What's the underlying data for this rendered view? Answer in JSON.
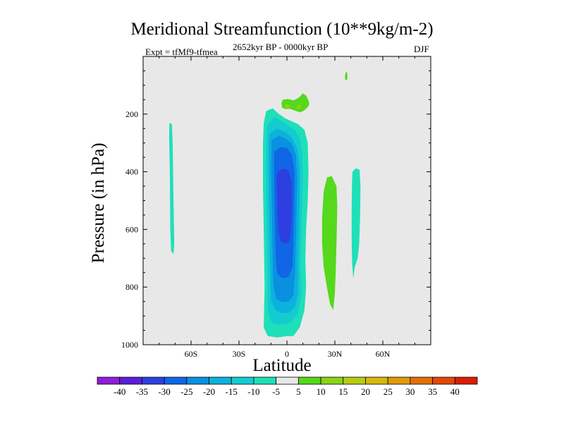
{
  "chart_data": {
    "type": "heatmap",
    "title": "Meridional Streamfunction (10**9kg/m-2)",
    "left_note": "Expt = tfMf9-tfmea",
    "center_note": "2652kyr BP - 0000kyr BP",
    "right_note": "DJF",
    "xlabel": "Latitude",
    "ylabel": "Pressure (in hPa)",
    "xlim": [
      -90,
      90
    ],
    "ylim": [
      1000,
      0
    ],
    "xticks": [
      {
        "value": -60,
        "label": "60S"
      },
      {
        "value": -30,
        "label": "30S"
      },
      {
        "value": 0,
        "label": "0"
      },
      {
        "value": 30,
        "label": "30N"
      },
      {
        "value": 60,
        "label": "60N"
      }
    ],
    "yticks": [
      {
        "value": 200,
        "label": "200"
      },
      {
        "value": 400,
        "label": "400"
      },
      {
        "value": 600,
        "label": "600"
      },
      {
        "value": 800,
        "label": "800"
      },
      {
        "value": 1000,
        "label": "1000"
      }
    ],
    "colorbar": {
      "levels": [
        -40,
        -35,
        -30,
        -25,
        -20,
        -15,
        -10,
        -5,
        5,
        10,
        15,
        20,
        25,
        30,
        35,
        40
      ],
      "labels": [
        "-40",
        "-35",
        "-30",
        "-25",
        "-20",
        "-15",
        "-10",
        "-5",
        "5",
        "10",
        "15",
        "20",
        "25",
        "30",
        "35",
        "40"
      ],
      "colors": [
        "#8f1ed8",
        "#5b1ed9",
        "#2d3fe0",
        "#1066e6",
        "#0a90e0",
        "#0cb2dc",
        "#14ccd0",
        "#1ee0b8",
        "#e8e8e8",
        "#56d81c",
        "#8ad418",
        "#b8cc12",
        "#d6b80e",
        "#e09a0c",
        "#e2700a",
        "#e04808",
        "#d81e06"
      ]
    },
    "background_color": "#e8e8e8",
    "regions": [
      {
        "name": "cell-45S-outer",
        "level": -5,
        "points": [
          [
            -73.5,
            230
          ],
          [
            -72,
            235
          ],
          [
            -71.5,
            300
          ],
          [
            -71,
            500
          ],
          [
            -70.5,
            650
          ],
          [
            -71,
            685
          ],
          [
            -72.5,
            675
          ],
          [
            -73,
            600
          ],
          [
            -73.3,
            400
          ],
          [
            -73.7,
            280
          ]
        ]
      },
      {
        "name": "main-cell-outer",
        "level": -5,
        "points": [
          [
            -14.5,
            230
          ],
          [
            -13,
            190
          ],
          [
            -9,
            180
          ],
          [
            -5,
            200
          ],
          [
            -1,
            215
          ],
          [
            3,
            225
          ],
          [
            7,
            235
          ],
          [
            11,
            255
          ],
          [
            13,
            300
          ],
          [
            13.5,
            400
          ],
          [
            13,
            500
          ],
          [
            12,
            600
          ],
          [
            11.5,
            700
          ],
          [
            12,
            800
          ],
          [
            11,
            880
          ],
          [
            8,
            940
          ],
          [
            4,
            970
          ],
          [
            0,
            970
          ],
          [
            -6,
            975
          ],
          [
            -12,
            970
          ],
          [
            -14.5,
            940
          ],
          [
            -14,
            800
          ],
          [
            -14.5,
            600
          ],
          [
            -15,
            450
          ],
          [
            -15,
            300
          ]
        ]
      },
      {
        "name": "main-cell-ring2",
        "level": -10,
        "points": [
          [
            -12.5,
            240
          ],
          [
            -8,
            210
          ],
          [
            -3,
            225
          ],
          [
            1,
            240
          ],
          [
            5,
            255
          ],
          [
            8,
            280
          ],
          [
            9.5,
            330
          ],
          [
            10,
            420
          ],
          [
            9.5,
            520
          ],
          [
            9,
            620
          ],
          [
            8.5,
            720
          ],
          [
            9,
            820
          ],
          [
            7,
            890
          ],
          [
            3,
            920
          ],
          [
            -1,
            930
          ],
          [
            -6,
            930
          ],
          [
            -10,
            920
          ],
          [
            -12,
            880
          ],
          [
            -12,
            780
          ],
          [
            -12.5,
            640
          ],
          [
            -13,
            480
          ],
          [
            -13,
            330
          ]
        ]
      },
      {
        "name": "main-cell-ring3",
        "level": -15,
        "points": [
          [
            -11,
            270
          ],
          [
            -6,
            250
          ],
          [
            -1,
            262
          ],
          [
            3,
            280
          ],
          [
            6.5,
            320
          ],
          [
            8,
            380
          ],
          [
            8,
            480
          ],
          [
            7.5,
            600
          ],
          [
            7,
            720
          ],
          [
            7,
            820
          ],
          [
            5,
            870
          ],
          [
            1,
            890
          ],
          [
            -3,
            890
          ],
          [
            -7,
            880
          ],
          [
            -10,
            850
          ],
          [
            -10.5,
            750
          ],
          [
            -11,
            600
          ],
          [
            -11.5,
            420
          ],
          [
            -11.5,
            320
          ]
        ]
      },
      {
        "name": "main-cell-ring4",
        "level": -20,
        "points": [
          [
            -9.5,
            290
          ],
          [
            -5,
            275
          ],
          [
            -1,
            285
          ],
          [
            3,
            300
          ],
          [
            5.5,
            340
          ],
          [
            6.5,
            420
          ],
          [
            6,
            540
          ],
          [
            5.5,
            660
          ],
          [
            5,
            760
          ],
          [
            4,
            830
          ],
          [
            1,
            850
          ],
          [
            -3,
            852
          ],
          [
            -7,
            840
          ],
          [
            -8.5,
            790
          ],
          [
            -9,
            680
          ],
          [
            -9.5,
            520
          ],
          [
            -10,
            380
          ]
        ]
      },
      {
        "name": "main-cell-ring5",
        "level": -25,
        "points": [
          [
            -8,
            330
          ],
          [
            -4,
            315
          ],
          [
            0,
            318
          ],
          [
            3,
            340
          ],
          [
            4.8,
            400
          ],
          [
            4.5,
            520
          ],
          [
            4,
            640
          ],
          [
            3.5,
            730
          ],
          [
            1,
            765
          ],
          [
            -3,
            770
          ],
          [
            -6,
            755
          ],
          [
            -7,
            700
          ],
          [
            -7.5,
            580
          ],
          [
            -8,
            440
          ]
        ]
      },
      {
        "name": "main-cell-ring6",
        "level": -30,
        "points": [
          [
            -6.5,
            410
          ],
          [
            -4,
            392
          ],
          [
            -1,
            390
          ],
          [
            1.5,
            400
          ],
          [
            3,
            440
          ],
          [
            3,
            520
          ],
          [
            2.6,
            600
          ],
          [
            1.5,
            640
          ],
          [
            -1,
            650
          ],
          [
            -4,
            640
          ],
          [
            -5.5,
            600
          ],
          [
            -6,
            520
          ]
        ]
      },
      {
        "name": "top-blob",
        "level": 5,
        "points": [
          [
            -3.5,
            162
          ],
          [
            -2.5,
            150
          ],
          [
            1,
            148
          ],
          [
            4,
            152
          ],
          [
            6,
            148
          ],
          [
            8,
            140
          ],
          [
            10,
            128
          ],
          [
            12,
            136
          ],
          [
            13.5,
            152
          ],
          [
            14,
            168
          ],
          [
            12,
            182
          ],
          [
            10,
            190
          ],
          [
            8,
            194
          ],
          [
            5,
            188
          ],
          [
            2,
            182
          ],
          [
            -1,
            183
          ],
          [
            -3,
            178
          ]
        ]
      },
      {
        "name": "top-blob-inner-left",
        "level": 10,
        "points": [
          [
            -1.5,
            170
          ],
          [
            0,
            165
          ],
          [
            1.6,
            168
          ],
          [
            1.8,
            176
          ],
          [
            0,
            180
          ],
          [
            -1.3,
            178
          ]
        ]
      },
      {
        "name": "top-blob-inner-right",
        "level": 10,
        "points": [
          [
            6,
            172
          ],
          [
            7.5,
            167
          ],
          [
            9,
            171
          ],
          [
            9,
            179
          ],
          [
            7.5,
            183
          ],
          [
            6,
            179
          ]
        ]
      },
      {
        "name": "spike-north",
        "level": 5,
        "points": [
          [
            36.6,
            58
          ],
          [
            37.5,
            52
          ],
          [
            37.9,
            70
          ],
          [
            37.6,
            80
          ],
          [
            37,
            84
          ],
          [
            36.5,
            80
          ],
          [
            36.3,
            70
          ]
        ]
      },
      {
        "name": "sh-positive-cell",
        "level": 5,
        "points": [
          [
            23,
            470
          ],
          [
            25,
            420
          ],
          [
            28,
            415
          ],
          [
            31,
            450
          ],
          [
            31.5,
            520
          ],
          [
            31,
            650
          ],
          [
            30.5,
            750
          ],
          [
            30,
            820
          ],
          [
            29,
            880
          ],
          [
            27,
            860
          ],
          [
            25,
            800
          ],
          [
            23,
            730
          ],
          [
            22,
            650
          ],
          [
            22,
            560
          ]
        ]
      },
      {
        "name": "cell-40N-outer",
        "level": -5,
        "points": [
          [
            41,
            400
          ],
          [
            43,
            388
          ],
          [
            45.5,
            393
          ],
          [
            46,
            450
          ],
          [
            45.8,
            550
          ],
          [
            45.2,
            650
          ],
          [
            44.3,
            700
          ],
          [
            42.5,
            730
          ],
          [
            41.5,
            770
          ],
          [
            40.8,
            720
          ],
          [
            40.5,
            640
          ],
          [
            40.5,
            520
          ],
          [
            40.7,
            440
          ]
        ]
      }
    ]
  }
}
